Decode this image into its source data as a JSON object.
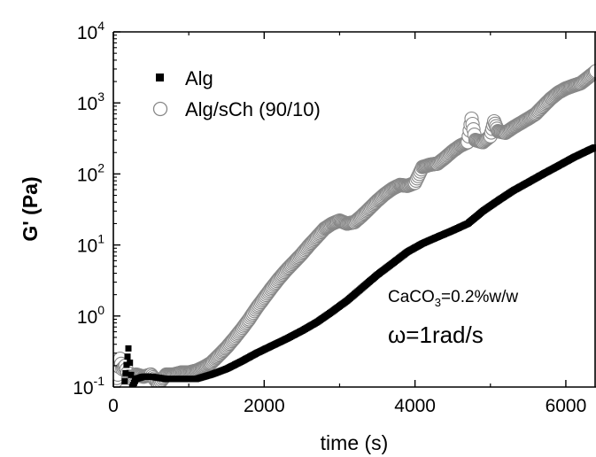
{
  "chart_data": {
    "type": "scatter",
    "xlabel": "time (s)",
    "ylabel": "G' (Pa)",
    "xlim": [
      0,
      6400
    ],
    "ylim": [
      0.1,
      10000
    ],
    "yscale": "log",
    "x_ticks": [
      0,
      2000,
      4000,
      6000
    ],
    "x_tick_labels": [
      "0",
      "2000",
      "4000",
      "6000"
    ],
    "y_ticks": [
      0.1,
      1,
      10,
      100,
      1000,
      10000
    ],
    "y_tick_labels": [
      {
        "base": "10",
        "exp": "-1"
      },
      {
        "base": "10",
        "exp": "0"
      },
      {
        "base": "10",
        "exp": "1"
      },
      {
        "base": "10",
        "exp": "2"
      },
      {
        "base": "10",
        "exp": "3"
      },
      {
        "base": "10",
        "exp": "4"
      }
    ],
    "legend_position": "top-left",
    "series": [
      {
        "name": "Alg",
        "marker": "filled-square",
        "color": "#000000",
        "x": [
          150,
          200,
          220,
          250,
          300,
          400,
          500,
          700,
          900,
          1100,
          1300,
          1500,
          1700,
          1900,
          2100,
          2300,
          2500,
          2700,
          2900,
          3100,
          3300,
          3500,
          3700,
          3900,
          4100,
          4300,
          4500,
          4700,
          4900,
          5100,
          5300,
          5500,
          5700,
          5900,
          6100,
          6300,
          6400
        ],
        "y": [
          0.12,
          0.35,
          0.22,
          0.1,
          0.13,
          0.14,
          0.14,
          0.13,
          0.13,
          0.13,
          0.15,
          0.18,
          0.23,
          0.3,
          0.38,
          0.48,
          0.62,
          0.82,
          1.15,
          1.65,
          2.5,
          3.8,
          5.5,
          8.0,
          10.5,
          13.0,
          16.0,
          20.0,
          30.0,
          42.0,
          58.0,
          76.0,
          100.0,
          130.0,
          170.0,
          215.0,
          240.0
        ]
      },
      {
        "name": "Alg/sCh (90/10)",
        "marker": "open-circle",
        "color": "#888888",
        "x": [
          30,
          60,
          90,
          120,
          160,
          200,
          250,
          300,
          400,
          500,
          600,
          700,
          800,
          900,
          1000,
          1100,
          1200,
          1300,
          1400,
          1500,
          1600,
          1700,
          1800,
          1900,
          2000,
          2100,
          2200,
          2300,
          2400,
          2500,
          2600,
          2700,
          2800,
          2900,
          3000,
          3100,
          3200,
          3300,
          3400,
          3500,
          3600,
          3700,
          3800,
          3900,
          4000,
          4100,
          4200,
          4300,
          4400,
          4500,
          4600,
          4700,
          4750,
          4800,
          4900,
          5000,
          5050,
          5100,
          5200,
          5300,
          5400,
          5500,
          5600,
          5700,
          5800,
          5900,
          6000,
          6100,
          6200,
          6300,
          6400
        ],
        "y": [
          0.12,
          0.15,
          0.25,
          0.18,
          0.2,
          0.14,
          0.13,
          0.15,
          0.14,
          0.15,
          0.11,
          0.15,
          0.15,
          0.16,
          0.16,
          0.17,
          0.19,
          0.22,
          0.28,
          0.36,
          0.48,
          0.65,
          0.9,
          1.3,
          1.8,
          2.5,
          3.4,
          4.5,
          5.8,
          7.5,
          10.0,
          13.0,
          17.0,
          20.0,
          22.0,
          20.0,
          21.0,
          26.0,
          33.0,
          42.0,
          52.0,
          62.0,
          70.0,
          68.0,
          75.0,
          125.0,
          135.0,
          140.0,
          170.0,
          210.0,
          250.0,
          280.0,
          600.0,
          300.0,
          280.0,
          340.0,
          550.0,
          400.0,
          380.0,
          450.0,
          520.0,
          600.0,
          700.0,
          900.0,
          1150.0,
          1400.0,
          1600.0,
          1750.0,
          1900.0,
          2300.0,
          2800.0
        ]
      }
    ],
    "annotations": [
      {
        "parts": [
          {
            "text": "CaCO",
            "sub": false
          },
          {
            "text": "3",
            "sub": true
          },
          {
            "text": "=0.2%w/w",
            "sub": false
          }
        ]
      },
      {
        "text": "ω=1rad/s"
      }
    ]
  }
}
